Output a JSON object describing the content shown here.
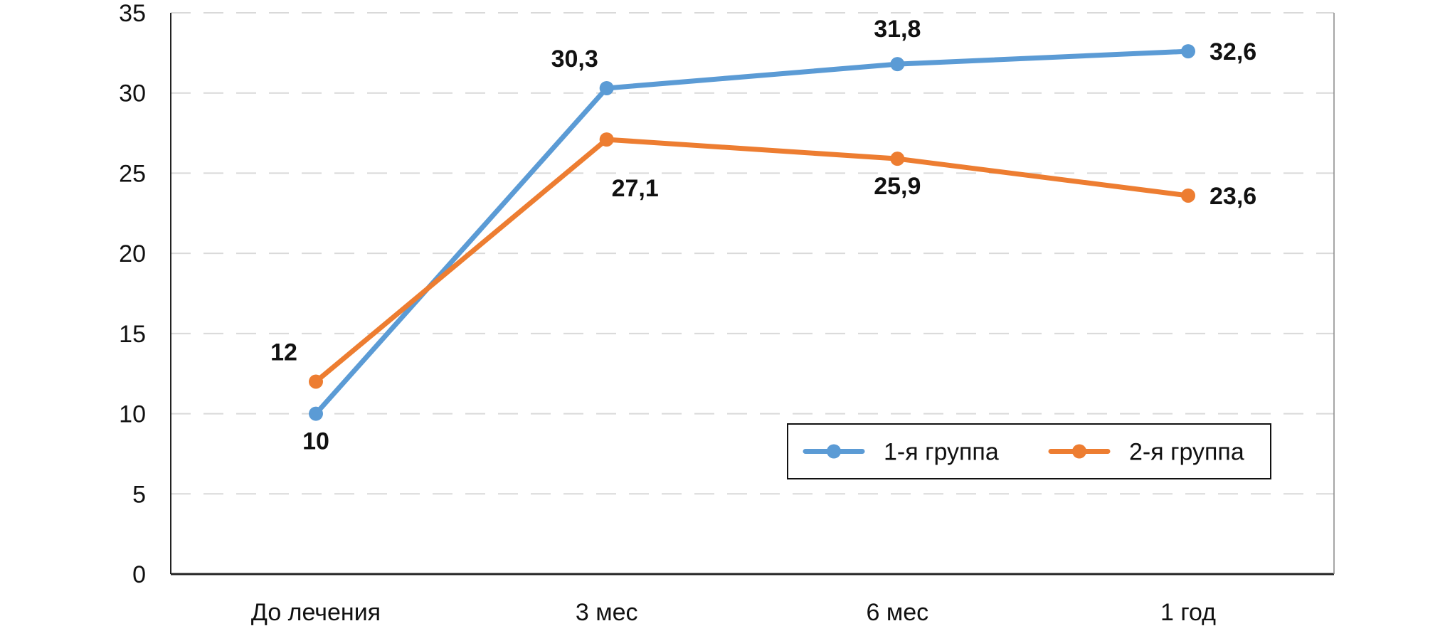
{
  "chart_data": {
    "type": "line",
    "title": "",
    "xlabel": "",
    "ylabel": "",
    "categories": [
      "До лечения",
      "3  мес",
      "6  мес",
      "1  год"
    ],
    "ylim": [
      0,
      35
    ],
    "yticks": [
      0,
      5,
      10,
      15,
      20,
      25,
      30,
      35
    ],
    "grid": true,
    "legend_position": "bottom-right",
    "series": [
      {
        "name": "1-я группа",
        "color": "#5B9BD5",
        "values": [
          10,
          30.3,
          31.8,
          32.6
        ],
        "labels": [
          "10",
          "30,3",
          "31,8",
          "32,6"
        ],
        "label_positions": [
          "below",
          "above-left",
          "above",
          "right"
        ]
      },
      {
        "name": "2-я группа",
        "color": "#ED7D31",
        "values": [
          12,
          27.1,
          25.9,
          23.6
        ],
        "labels": [
          "12",
          "27,1",
          "25,9",
          "23,6"
        ],
        "label_positions": [
          "above-left",
          "below-right",
          "below",
          "right"
        ]
      }
    ]
  }
}
